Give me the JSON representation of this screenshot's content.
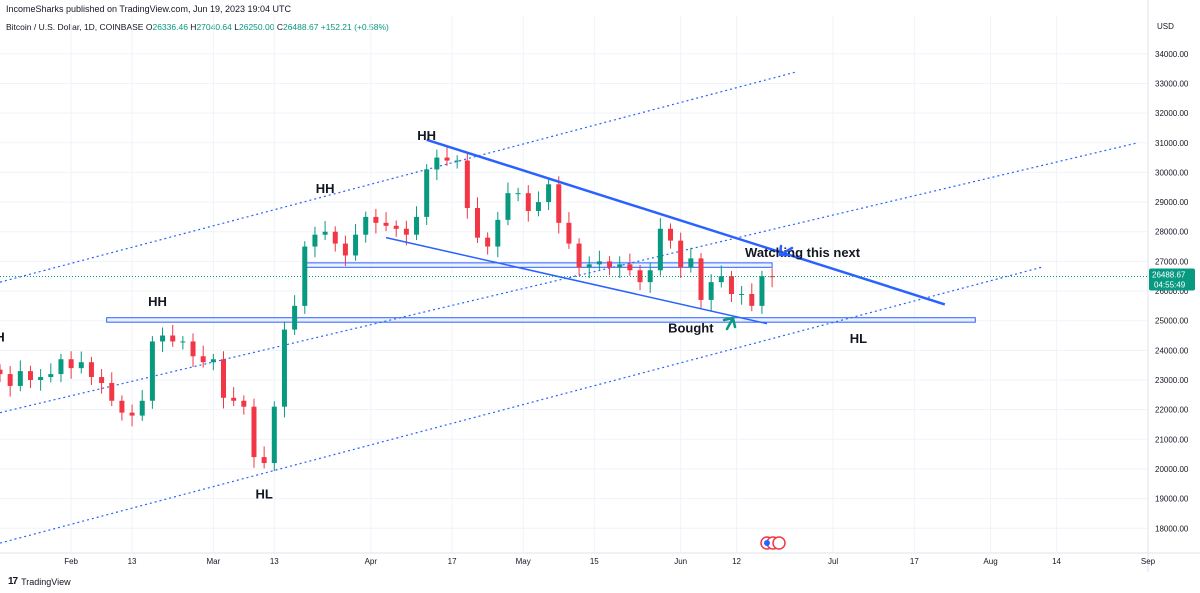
{
  "header": {
    "publisher": "IncomeSharks published on TradingView.com, Jun 19, 2023 19:04 UTC",
    "symbol": "Bitcoin / U.S. Dollar, 1D, COINBASE",
    "o_label": "O",
    "o_value": "26336.46",
    "h_label": "H",
    "h_value": "27040.64",
    "l_label": "L",
    "l_value": "26250.00",
    "c_label": "C",
    "c_value": "26488.67",
    "change": "+152.21 (+0.58%)",
    "currency": "USD"
  },
  "footer": {
    "logo": "17",
    "brand": "TradingView"
  },
  "colors": {
    "up": "#089981",
    "down": "#f23645",
    "trend": "#2962ff",
    "channel": "#2962ff",
    "zone_fill": "#e3e9fb"
  },
  "chart_data": {
    "type": "candlestick",
    "title": "",
    "ylim": [
      17200,
      34600
    ],
    "y_ticks": [
      18000,
      19000,
      20000,
      21000,
      22000,
      23000,
      24000,
      25000,
      26000,
      27000,
      28000,
      29000,
      30000,
      31000,
      32000,
      33000,
      34000
    ],
    "y_tick_labels": [
      "18000.00",
      "19000.00",
      "20000.00",
      "21000.00",
      "22000.00",
      "23000.00",
      "24000.00",
      "25000.00",
      "26000.00",
      "27000.00",
      "28000.00",
      "29000.00",
      "30000.00",
      "31000.00",
      "32000.00",
      "33000.00",
      "34000.00"
    ],
    "x_start": "2023-01-18",
    "x_end": "2023-09-01",
    "x_ticks": [
      {
        "date": "2023-02-01",
        "label": "Feb"
      },
      {
        "date": "2023-02-13",
        "label": "13"
      },
      {
        "date": "2023-03-01",
        "label": "Mar"
      },
      {
        "date": "2023-03-13",
        "label": "13"
      },
      {
        "date": "2023-04-01",
        "label": "Apr"
      },
      {
        "date": "2023-04-17",
        "label": "17"
      },
      {
        "date": "2023-05-01",
        "label": "May"
      },
      {
        "date": "2023-05-15",
        "label": "15"
      },
      {
        "date": "2023-06-01",
        "label": "Jun"
      },
      {
        "date": "2023-06-12",
        "label": "12"
      },
      {
        "date": "2023-07-01",
        "label": "Jul"
      },
      {
        "date": "2023-07-17",
        "label": "17"
      },
      {
        "date": "2023-08-01",
        "label": "Aug"
      },
      {
        "date": "2023-08-14",
        "label": "14"
      },
      {
        "date": "2023-09-01",
        "label": "Sep"
      }
    ],
    "current_price": 26488.67,
    "price_label": "26488.67",
    "countdown": "04:55:49",
    "closes": [
      {
        "d": "2023-01-18",
        "c": 23200
      },
      {
        "d": "2023-01-20",
        "c": 22800
      },
      {
        "d": "2023-01-22",
        "c": 23300
      },
      {
        "d": "2023-01-24",
        "c": 23000
      },
      {
        "d": "2023-01-26",
        "c": 23100
      },
      {
        "d": "2023-01-28",
        "c": 23200
      },
      {
        "d": "2023-01-30",
        "c": 23700
      },
      {
        "d": "2023-02-01",
        "c": 23400
      },
      {
        "d": "2023-02-03",
        "c": 23600
      },
      {
        "d": "2023-02-05",
        "c": 23100
      },
      {
        "d": "2023-02-07",
        "c": 22900
      },
      {
        "d": "2023-02-09",
        "c": 22300
      },
      {
        "d": "2023-02-11",
        "c": 21900
      },
      {
        "d": "2023-02-13",
        "c": 21800
      },
      {
        "d": "2023-02-15",
        "c": 22300
      },
      {
        "d": "2023-02-17",
        "c": 24300
      },
      {
        "d": "2023-02-19",
        "c": 24500
      },
      {
        "d": "2023-02-21",
        "c": 24300
      },
      {
        "d": "2023-02-23",
        "c": 24300
      },
      {
        "d": "2023-02-25",
        "c": 23800
      },
      {
        "d": "2023-02-27",
        "c": 23600
      },
      {
        "d": "2023-03-01",
        "c": 23700
      },
      {
        "d": "2023-03-03",
        "c": 22400
      },
      {
        "d": "2023-03-05",
        "c": 22300
      },
      {
        "d": "2023-03-07",
        "c": 22100
      },
      {
        "d": "2023-03-09",
        "c": 20400
      },
      {
        "d": "2023-03-11",
        "c": 20200
      },
      {
        "d": "2023-03-13",
        "c": 22100
      },
      {
        "d": "2023-03-15",
        "c": 24700
      },
      {
        "d": "2023-03-17",
        "c": 25500
      },
      {
        "d": "2023-03-19",
        "c": 27500
      },
      {
        "d": "2023-03-21",
        "c": 27900
      },
      {
        "d": "2023-03-23",
        "c": 28000
      },
      {
        "d": "2023-03-25",
        "c": 27600
      },
      {
        "d": "2023-03-27",
        "c": 27200
      },
      {
        "d": "2023-03-29",
        "c": 27900
      },
      {
        "d": "2023-03-31",
        "c": 28500
      },
      {
        "d": "2023-04-02",
        "c": 28300
      },
      {
        "d": "2023-04-04",
        "c": 28200
      },
      {
        "d": "2023-04-06",
        "c": 28100
      },
      {
        "d": "2023-04-08",
        "c": 27900
      },
      {
        "d": "2023-04-10",
        "c": 28500
      },
      {
        "d": "2023-04-12",
        "c": 30100
      },
      {
        "d": "2023-04-14",
        "c": 30500
      },
      {
        "d": "2023-04-16",
        "c": 30400
      },
      {
        "d": "2023-04-18",
        "c": 30400
      },
      {
        "d": "2023-04-20",
        "c": 28800
      },
      {
        "d": "2023-04-22",
        "c": 27800
      },
      {
        "d": "2023-04-24",
        "c": 27500
      },
      {
        "d": "2023-04-26",
        "c": 28400
      },
      {
        "d": "2023-04-28",
        "c": 29300
      },
      {
        "d": "2023-04-30",
        "c": 29300
      },
      {
        "d": "2023-05-02",
        "c": 28700
      },
      {
        "d": "2023-05-04",
        "c": 29000
      },
      {
        "d": "2023-05-06",
        "c": 29600
      },
      {
        "d": "2023-05-08",
        "c": 28300
      },
      {
        "d": "2023-05-10",
        "c": 27600
      },
      {
        "d": "2023-05-12",
        "c": 26800
      },
      {
        "d": "2023-05-14",
        "c": 26900
      },
      {
        "d": "2023-05-16",
        "c": 27000
      },
      {
        "d": "2023-05-18",
        "c": 26800
      },
      {
        "d": "2023-05-20",
        "c": 26900
      },
      {
        "d": "2023-05-22",
        "c": 26700
      },
      {
        "d": "2023-05-24",
        "c": 26300
      },
      {
        "d": "2023-05-26",
        "c": 26700
      },
      {
        "d": "2023-05-28",
        "c": 28100
      },
      {
        "d": "2023-05-30",
        "c": 27700
      },
      {
        "d": "2023-06-01",
        "c": 26800
      },
      {
        "d": "2023-06-03",
        "c": 27100
      },
      {
        "d": "2023-06-05",
        "c": 25700
      },
      {
        "d": "2023-06-07",
        "c": 26300
      },
      {
        "d": "2023-06-09",
        "c": 26500
      },
      {
        "d": "2023-06-11",
        "c": 25900
      },
      {
        "d": "2023-06-13",
        "c": 25900
      },
      {
        "d": "2023-06-15",
        "c": 25500
      },
      {
        "d": "2023-06-17",
        "c": 26500
      },
      {
        "d": "2023-06-19",
        "c": 26489
      }
    ],
    "annotations": [
      {
        "text": "HH",
        "date": "2023-04-12",
        "price": 31100
      },
      {
        "text": "HH",
        "date": "2023-03-23",
        "price": 29300
      },
      {
        "text": "HH",
        "date": "2023-02-18",
        "price": 25500
      },
      {
        "text": "HL",
        "date": "2023-03-11",
        "price": 19000
      },
      {
        "text": "HL",
        "date": "2023-07-06",
        "price": 24250
      },
      {
        "text": "H",
        "date": "2023-01-18",
        "price": 24300
      },
      {
        "text": "Bought",
        "date": "2023-06-03",
        "price": 24600
      },
      {
        "text": "Watching this next",
        "date": "2023-06-25",
        "price": 27150
      }
    ],
    "trend_lines": [
      {
        "name": "upper-trendline",
        "from": {
          "d": "2023-04-12",
          "p": 31100
        },
        "to": {
          "d": "2023-07-23",
          "p": 25550
        }
      },
      {
        "name": "lower-trendline",
        "from": {
          "d": "2023-04-04",
          "p": 27800
        },
        "to": {
          "d": "2023-06-18",
          "p": 24900
        }
      }
    ],
    "channel_lines": [
      {
        "from": {
          "d": "2023-01-18",
          "p": 26300
        },
        "to": {
          "d": "2023-06-24",
          "p": 33400
        }
      },
      {
        "from": {
          "d": "2023-01-18",
          "p": 21900
        },
        "to": {
          "d": "2023-08-30",
          "p": 31000
        }
      },
      {
        "from": {
          "d": "2023-01-18",
          "p": 17500
        },
        "to": {
          "d": "2023-08-11",
          "p": 26800
        }
      }
    ],
    "zones": [
      {
        "name": "support-zone",
        "from": "2023-02-08",
        "to": "2023-07-29",
        "low": 24950,
        "high": 25100
      },
      {
        "name": "resistance-zone",
        "from": "2023-03-19",
        "to": "2023-06-19",
        "low": 26800,
        "high": 26950
      }
    ]
  }
}
